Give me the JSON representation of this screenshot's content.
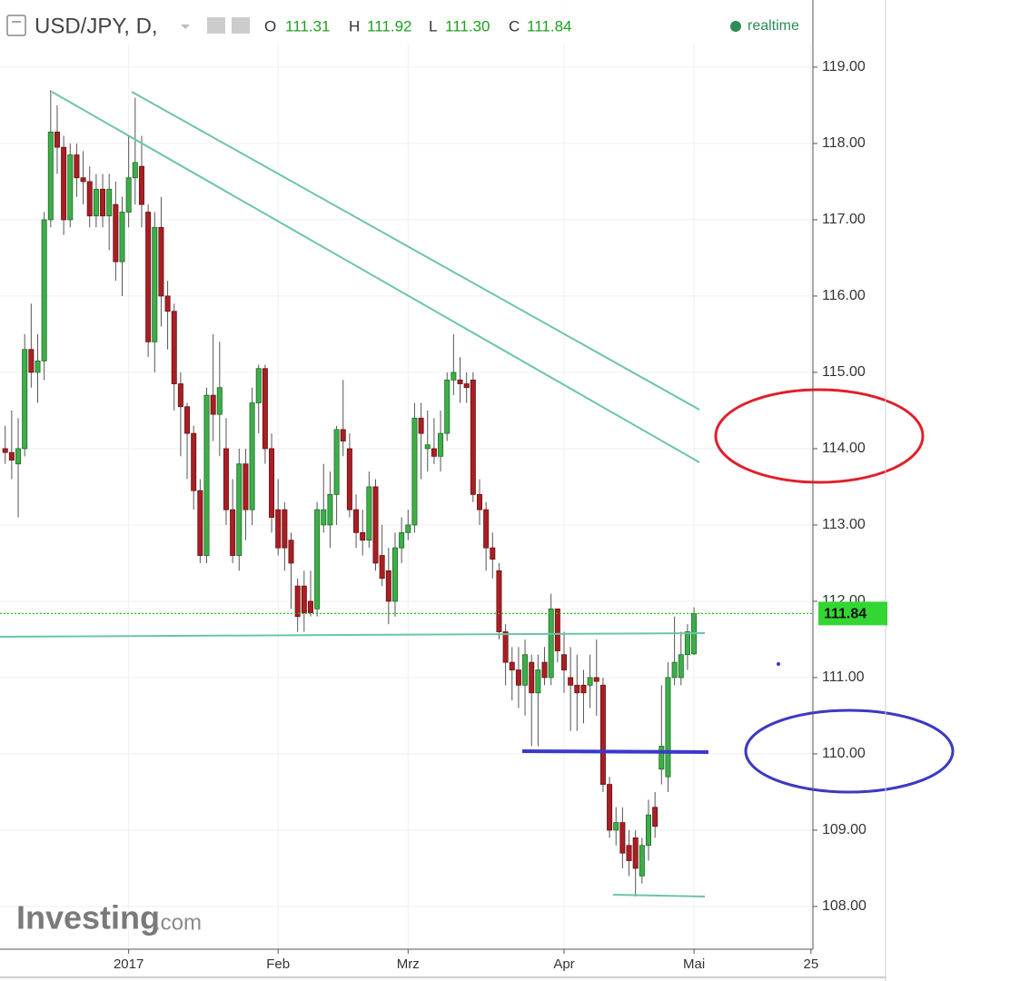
{
  "header": {
    "symbol": "USD/JPY, D,",
    "o_label": "O",
    "open": "111.31",
    "h_label": "H",
    "high": "111.92",
    "l_label": "L",
    "low": "111.30",
    "c_label": "C",
    "close": "111.84",
    "status": "realtime"
  },
  "logo": {
    "brand": "Investing",
    "suffix": ".com"
  },
  "chart_data": {
    "type": "candlestick",
    "up_color": "#3dae49",
    "down_color": "#a81f23",
    "grid": true,
    "x": [
      0,
      1,
      2,
      3,
      4,
      5,
      6,
      7,
      8,
      9,
      10,
      11,
      12,
      13,
      14,
      15,
      16,
      17,
      18,
      19,
      20,
      21,
      22,
      23,
      24,
      25,
      26,
      27,
      28,
      29,
      30,
      31,
      32,
      33,
      34,
      35,
      36,
      37,
      38,
      39,
      40,
      41,
      42,
      43,
      44,
      45,
      46,
      47,
      48,
      49,
      50,
      51,
      52,
      53,
      54,
      55,
      56,
      57,
      58,
      59,
      60,
      61,
      62,
      63,
      64,
      65,
      66,
      67,
      68,
      69,
      70,
      71,
      72,
      73,
      74,
      75,
      76,
      77,
      78,
      79,
      80,
      81,
      82,
      83,
      84,
      85,
      86,
      87,
      88,
      89,
      90,
      91,
      92,
      93,
      94,
      95,
      96,
      97,
      98,
      99,
      100,
      101,
      102,
      103,
      104,
      105,
      106
    ],
    "open": [
      114.0,
      113.95,
      113.8,
      114.0,
      115.3,
      115.0,
      115.15,
      117.0,
      118.15,
      117.95,
      117.0,
      117.85,
      117.55,
      117.5,
      117.05,
      117.4,
      117.05,
      117.2,
      116.45,
      117.1,
      117.55,
      117.7,
      117.1,
      115.4,
      116.9,
      116.0,
      115.8,
      114.85,
      114.55,
      114.2,
      113.45,
      112.6,
      114.7,
      114.45,
      114.0,
      113.2,
      112.6,
      113.8,
      113.2,
      114.6,
      115.05,
      114.0,
      113.2,
      113.2,
      112.8,
      112.2,
      112.2,
      112.0,
      111.9,
      113.0,
      113.0,
      113.4,
      114.25,
      114.0,
      113.2,
      112.9,
      112.8,
      113.5,
      112.6,
      112.4,
      112.0,
      112.7,
      112.9,
      113.0,
      114.4,
      114.0,
      114.0,
      113.9,
      114.2,
      114.9,
      114.9,
      114.85,
      114.9,
      113.4,
      113.2,
      112.7,
      112.4,
      111.6,
      111.2,
      111.1,
      110.9,
      111.2,
      110.8,
      111.2,
      111.0,
      111.9,
      111.3,
      111.0,
      110.9,
      110.9,
      110.9,
      111.0,
      110.9,
      109.6,
      109.0,
      109.1,
      108.8,
      108.9,
      108.4,
      108.8,
      109.3,
      109.8,
      109.7,
      111.0,
      111.0,
      111.3,
      111.31
    ],
    "high": [
      114.3,
      114.5,
      114.4,
      115.5,
      115.9,
      115.5,
      117.1,
      118.7,
      118.5,
      118.1,
      118.0,
      118.0,
      117.9,
      117.7,
      117.6,
      117.6,
      117.6,
      117.5,
      117.3,
      118.1,
      118.6,
      118.1,
      117.2,
      117.1,
      117.3,
      116.2,
      115.9,
      115.0,
      114.6,
      114.3,
      113.6,
      114.8,
      115.5,
      115.4,
      114.4,
      113.6,
      114.0,
      114.0,
      114.8,
      115.1,
      115.1,
      114.2,
      113.6,
      113.3,
      112.9,
      112.3,
      112.4,
      112.4,
      113.3,
      113.8,
      113.7,
      114.3,
      114.9,
      114.2,
      113.4,
      113.2,
      113.7,
      113.6,
      113.0,
      112.7,
      112.9,
      113.1,
      113.2,
      114.6,
      114.6,
      114.5,
      114.4,
      114.5,
      115.0,
      115.5,
      115.2,
      115.0,
      115.0,
      113.6,
      113.3,
      112.9,
      112.5,
      111.7,
      111.4,
      111.4,
      111.5,
      111.3,
      111.3,
      111.4,
      112.1,
      111.9,
      111.6,
      111.4,
      111.3,
      111.1,
      111.3,
      111.5,
      111.0,
      109.7,
      109.3,
      109.3,
      109.0,
      109.0,
      108.9,
      109.4,
      109.5,
      110.9,
      111.2,
      111.8,
      111.6,
      111.7,
      111.92
    ],
    "low": [
      113.8,
      113.6,
      113.1,
      113.9,
      114.8,
      114.6,
      114.9,
      116.9,
      117.6,
      116.8,
      116.9,
      117.3,
      117.2,
      116.9,
      116.9,
      116.9,
      116.6,
      116.2,
      116.0,
      116.9,
      117.2,
      116.9,
      115.2,
      115.0,
      115.6,
      115.3,
      114.5,
      113.9,
      113.6,
      113.2,
      112.5,
      112.5,
      114.1,
      113.9,
      113.0,
      112.5,
      112.4,
      112.8,
      113.0,
      114.2,
      113.8,
      112.9,
      112.6,
      112.4,
      111.9,
      111.6,
      111.6,
      111.8,
      111.8,
      112.9,
      112.7,
      113.0,
      113.9,
      113.1,
      112.7,
      112.6,
      112.7,
      112.4,
      112.2,
      111.7,
      111.8,
      112.5,
      112.8,
      112.9,
      113.6,
      113.7,
      113.8,
      113.7,
      114.1,
      114.7,
      114.6,
      114.6,
      113.3,
      113.0,
      112.4,
      112.3,
      111.5,
      110.9,
      110.7,
      110.6,
      110.5,
      110.1,
      110.1,
      110.9,
      110.9,
      111.2,
      110.8,
      110.3,
      110.3,
      110.4,
      110.6,
      110.5,
      109.5,
      108.9,
      108.8,
      108.5,
      108.4,
      108.13,
      108.3,
      108.6,
      108.9,
      109.6,
      109.5,
      110.9,
      110.9,
      111.1,
      111.3
    ],
    "close": [
      113.95,
      113.85,
      114.0,
      115.3,
      115.0,
      115.15,
      117.0,
      118.15,
      117.95,
      117.0,
      117.85,
      117.55,
      117.5,
      117.05,
      117.4,
      117.05,
      117.4,
      116.45,
      117.1,
      117.55,
      117.75,
      117.2,
      115.4,
      116.9,
      116.0,
      115.8,
      114.85,
      114.55,
      114.2,
      113.45,
      112.6,
      114.7,
      114.45,
      114.8,
      113.2,
      112.6,
      113.8,
      113.2,
      114.6,
      115.05,
      114.0,
      113.1,
      112.7,
      112.7,
      112.5,
      111.8,
      111.85,
      111.85,
      113.2,
      113.2,
      113.4,
      114.25,
      114.1,
      113.2,
      112.9,
      112.8,
      113.5,
      112.5,
      112.3,
      112.0,
      112.7,
      112.9,
      113.0,
      114.4,
      114.2,
      114.05,
      113.9,
      114.2,
      114.9,
      115.0,
      114.85,
      114.8,
      113.4,
      113.2,
      112.7,
      112.55,
      111.6,
      111.2,
      111.1,
      110.9,
      111.3,
      110.8,
      111.1,
      111.0,
      111.9,
      111.35,
      111.1,
      110.9,
      110.8,
      110.8,
      111.0,
      110.95,
      109.6,
      109.0,
      109.1,
      108.7,
      108.6,
      108.5,
      108.8,
      109.2,
      109.05,
      110.1,
      111.0,
      111.2,
      111.3,
      111.6,
      111.84
    ],
    "xlim": [
      -0.8,
      124.3
    ],
    "xticks": [
      {
        "value": 19,
        "label": "2017"
      },
      {
        "value": 42,
        "label": "Feb"
      },
      {
        "value": 62,
        "label": "Mrz"
      },
      {
        "value": 86,
        "label": "Apr"
      },
      {
        "value": 106,
        "label": "Mai"
      },
      {
        "value": 124,
        "label": "25"
      }
    ],
    "ylim": [
      107.44,
      119.88
    ],
    "yticks": [
      {
        "value": 108,
        "label": "108.00"
      },
      {
        "value": 109,
        "label": "109.00"
      },
      {
        "value": 110,
        "label": "110.00"
      },
      {
        "value": 111,
        "label": "111.00"
      },
      {
        "value": 112,
        "label": "112.00"
      },
      {
        "value": 113,
        "label": "113.00"
      },
      {
        "value": 114,
        "label": "114.00"
      },
      {
        "value": 115,
        "label": "115.00"
      },
      {
        "value": 116,
        "label": "116.00"
      },
      {
        "value": 117,
        "label": "117.00"
      },
      {
        "value": 118,
        "label": "118.00"
      },
      {
        "value": 119,
        "label": "119.00"
      }
    ],
    "last_price": {
      "value": 111.84,
      "label": "111.84"
    }
  }
}
